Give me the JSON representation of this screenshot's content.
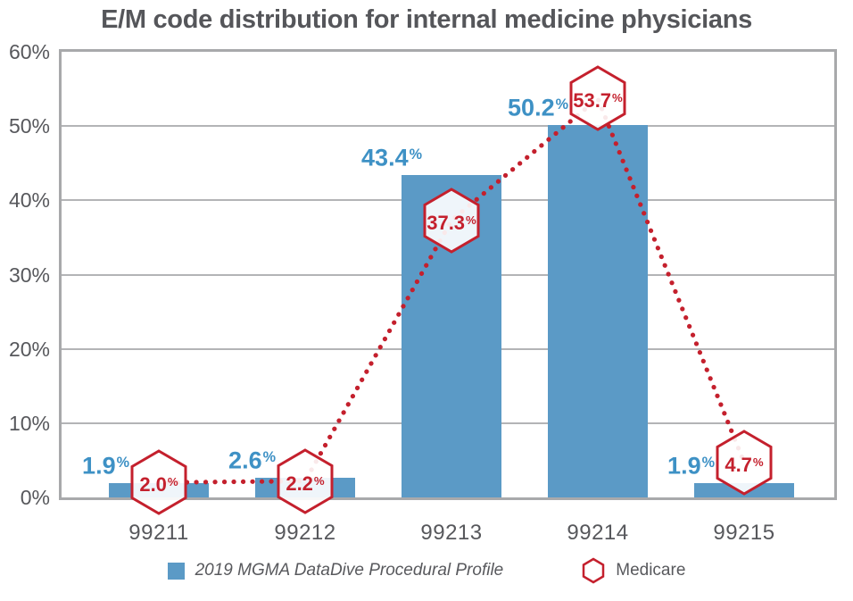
{
  "title": "E/M code distribution for internal medicine physicians",
  "chart_data": {
    "type": "bar",
    "categories": [
      "99211",
      "99212",
      "99213",
      "99214",
      "99215"
    ],
    "series": [
      {
        "name": "2019 MGMA DataDive Procedural Profile",
        "type": "bar",
        "values": [
          1.9,
          2.6,
          43.4,
          50.2,
          1.9
        ],
        "color": "#5b9ac6",
        "label_color": "#3e91c5"
      },
      {
        "name": "Medicare",
        "type": "line",
        "line_style": "dotted",
        "marker": "hexagon-outline",
        "marker_fill": "#ffffff",
        "values": [
          2.0,
          2.2,
          37.3,
          53.7,
          4.7
        ],
        "color": "#c4202d"
      }
    ],
    "xlabel": "",
    "ylabel": "",
    "ylim": [
      0,
      60
    ],
    "ytick_step": 10,
    "yticks": [
      "0%",
      "10%",
      "20%",
      "30%",
      "40%",
      "50%",
      "60%"
    ],
    "grid": true,
    "legend_position": "bottom",
    "value_label_format": "number-with-superscript-percent"
  },
  "legend": {
    "items": [
      {
        "label": "2019 MGMA DataDive Procedural Profile",
        "marker": "blue-square",
        "italic": true
      },
      {
        "label": "Medicare",
        "marker": "red-hexagon-outline",
        "italic": false
      }
    ]
  },
  "colors": {
    "bar_blue": "#5b9ac6",
    "bar_label_blue": "#3e91c5",
    "medicare_red": "#c4202d",
    "axis_text_gray": "#57585c",
    "plot_border_gray": "#a8a9ab",
    "gridline_gray": "#b3b4b6",
    "title_gray": "#55565a"
  }
}
